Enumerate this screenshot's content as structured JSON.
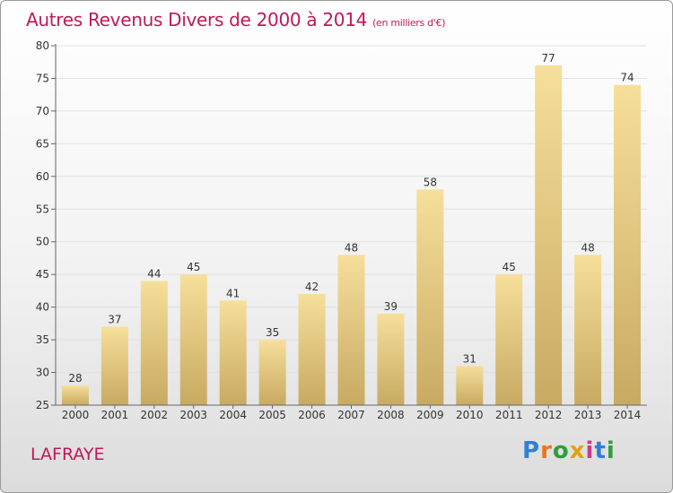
{
  "header": {
    "title": "Autres Revenus Divers de 2000 à 2014",
    "subtitle": "(en milliers d'€)"
  },
  "footer": {
    "town": "LAFRAYE",
    "brand": [
      "P",
      "r",
      "o",
      "x",
      "i",
      "t",
      "i"
    ]
  },
  "colors": {
    "title": "#c0185a",
    "bar_top": "#f6df9a",
    "bar_bottom": "#c8aa62",
    "brand": [
      "#2f7fd6",
      "#e8771d",
      "#2f9e3a",
      "#e0a213",
      "#c83b8a",
      "#2f7fd6",
      "#2f9e3a"
    ]
  },
  "chart_data": {
    "type": "bar",
    "title": "Autres Revenus Divers de 2000 à 2014",
    "subtitle": "(en milliers d'€)",
    "xlabel": "",
    "ylabel": "",
    "categories": [
      "2000",
      "2001",
      "2002",
      "2003",
      "2004",
      "2005",
      "2006",
      "2007",
      "2008",
      "2009",
      "2010",
      "2011",
      "2012",
      "2013",
      "2014"
    ],
    "values": [
      28,
      37,
      44,
      45,
      41,
      35,
      42,
      48,
      39,
      58,
      31,
      45,
      77,
      48,
      74
    ],
    "ylim": [
      25,
      80
    ],
    "yticks": [
      25,
      30,
      35,
      40,
      45,
      50,
      55,
      60,
      65,
      70,
      75,
      80
    ],
    "grid": true,
    "data_labels": true
  }
}
